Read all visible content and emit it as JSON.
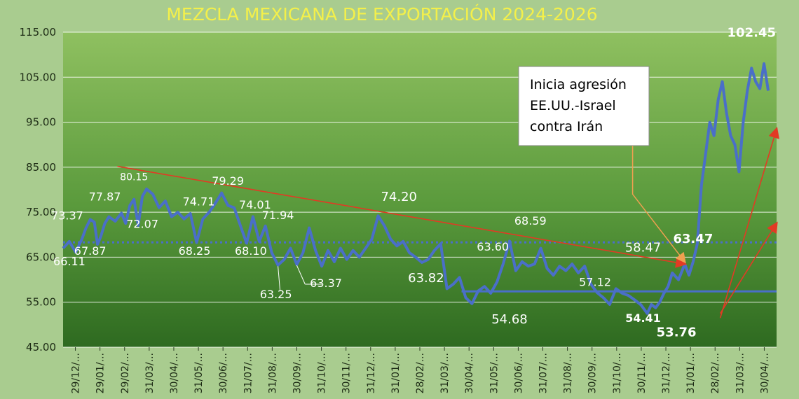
{
  "chart_data": {
    "type": "line",
    "title": "MEZCLA MEXICANA DE EXPORTACIÓN 2024-2026",
    "ylim": [
      45,
      115
    ],
    "yticks": [
      "45.00",
      "55.00",
      "65.00",
      "75.00",
      "85.00",
      "95.00",
      "105.00",
      "115.00"
    ],
    "xticks": [
      "29/12/...",
      "29/01/...",
      "29/02/...",
      "31/03/...",
      "30/04/...",
      "31/05/...",
      "30/06/...",
      "31/07/...",
      "31/08/...",
      "30/09/...",
      "31/10/...",
      "30/11/...",
      "31/12/...",
      "31/01/...",
      "28/02/...",
      "31/03/...",
      "30/04/...",
      "31/05/...",
      "30/06/...",
      "31/07/...",
      "31/08/...",
      "30/09/...",
      "31/10/...",
      "30/11/...",
      "31/12/...",
      "31/01/...",
      "28/02/...",
      "31/03/...",
      "30/04/..."
    ],
    "legend": "none",
    "grid": "horizontal",
    "series": [
      {
        "color": "#4a6fc8",
        "points": [
          [
            0,
            67.0
          ],
          [
            0.3,
            68.5
          ],
          [
            0.6,
            66.11
          ],
          [
            0.9,
            69.0
          ],
          [
            1.1,
            71.5
          ],
          [
            1.3,
            73.37
          ],
          [
            1.5,
            72.8
          ],
          [
            1.65,
            67.87
          ],
          [
            1.8,
            69.5
          ],
          [
            2.0,
            72.5
          ],
          [
            2.2,
            74.0
          ],
          [
            2.5,
            73.0
          ],
          [
            2.8,
            74.8
          ],
          [
            3.0,
            72.5
          ],
          [
            3.2,
            76.5
          ],
          [
            3.4,
            77.87
          ],
          [
            3.6,
            72.07
          ],
          [
            3.8,
            78.5
          ],
          [
            4.0,
            80.15
          ],
          [
            4.3,
            79.0
          ],
          [
            4.6,
            76.0
          ],
          [
            4.9,
            77.5
          ],
          [
            5.2,
            74.0
          ],
          [
            5.5,
            75.0
          ],
          [
            5.8,
            73.5
          ],
          [
            6.1,
            74.71
          ],
          [
            6.4,
            68.25
          ],
          [
            6.7,
            73.5
          ],
          [
            7.0,
            75.0
          ],
          [
            7.3,
            77.0
          ],
          [
            7.6,
            79.29
          ],
          [
            7.9,
            76.5
          ],
          [
            8.2,
            76.0
          ],
          [
            8.5,
            72.0
          ],
          [
            8.8,
            68.1
          ],
          [
            9.1,
            74.01
          ],
          [
            9.4,
            68.5
          ],
          [
            9.7,
            71.94
          ],
          [
            10.0,
            66.0
          ],
          [
            10.3,
            63.25
          ],
          [
            10.6,
            64.5
          ],
          [
            10.9,
            67.0
          ],
          [
            11.2,
            63.37
          ],
          [
            11.5,
            66.0
          ],
          [
            11.8,
            71.5
          ],
          [
            12.1,
            66.5
          ],
          [
            12.4,
            63.0
          ],
          [
            12.7,
            66.5
          ],
          [
            13.0,
            64.0
          ],
          [
            13.3,
            67.0
          ],
          [
            13.6,
            64.5
          ],
          [
            13.9,
            66.5
          ],
          [
            14.2,
            65.0
          ],
          [
            14.5,
            67.0
          ],
          [
            14.8,
            69.0
          ],
          [
            15.1,
            74.2
          ],
          [
            15.4,
            72.0
          ],
          [
            15.7,
            69.0
          ],
          [
            16.0,
            67.5
          ],
          [
            16.3,
            68.5
          ],
          [
            16.6,
            66.0
          ],
          [
            16.9,
            65.0
          ],
          [
            17.2,
            63.82
          ],
          [
            17.5,
            64.5
          ],
          [
            17.8,
            66.5
          ],
          [
            18.1,
            68.0
          ],
          [
            18.4,
            58.0
          ],
          [
            18.7,
            59.0
          ],
          [
            19.0,
            60.5
          ],
          [
            19.3,
            56.0
          ],
          [
            19.6,
            54.68
          ],
          [
            19.9,
            57.5
          ],
          [
            20.2,
            58.5
          ],
          [
            20.5,
            57.0
          ],
          [
            20.8,
            59.5
          ],
          [
            21.1,
            63.6
          ],
          [
            21.4,
            68.59
          ],
          [
            21.7,
            62.0
          ],
          [
            22.0,
            64.0
          ],
          [
            22.3,
            63.0
          ],
          [
            22.6,
            63.5
          ],
          [
            22.9,
            67.0
          ],
          [
            23.2,
            62.5
          ],
          [
            23.5,
            61.0
          ],
          [
            23.8,
            63.0
          ],
          [
            24.1,
            62.0
          ],
          [
            24.4,
            63.5
          ],
          [
            24.7,
            61.5
          ],
          [
            25.0,
            63.0
          ],
          [
            25.3,
            59.0
          ],
          [
            25.6,
            57.12
          ],
          [
            25.9,
            56.0
          ],
          [
            26.2,
            54.5
          ],
          [
            26.5,
            58.0
          ],
          [
            26.8,
            57.0
          ],
          [
            27.1,
            56.5
          ],
          [
            27.4,
            55.5
          ],
          [
            27.7,
            54.41
          ],
          [
            28.0,
            52.5
          ],
          [
            28.2,
            54.5
          ],
          [
            28.4,
            53.76
          ],
          [
            28.6,
            55.0
          ],
          [
            28.8,
            57.0
          ],
          [
            29.0,
            58.5
          ],
          [
            29.2,
            61.5
          ],
          [
            29.5,
            60.0
          ],
          [
            29.8,
            63.47
          ],
          [
            30.0,
            61.0
          ],
          [
            30.2,
            64.0
          ],
          [
            30.4,
            68.0
          ],
          [
            30.6,
            81.0
          ],
          [
            30.8,
            88.0
          ],
          [
            31.0,
            95.0
          ],
          [
            31.2,
            92.0
          ],
          [
            31.4,
            100.0
          ],
          [
            31.6,
            104.0
          ],
          [
            31.8,
            97.0
          ],
          [
            32.0,
            92.0
          ],
          [
            32.2,
            90.0
          ],
          [
            32.4,
            84.0
          ],
          [
            32.6,
            95.0
          ],
          [
            32.8,
            102.0
          ],
          [
            33.0,
            107.0
          ],
          [
            33.2,
            104.0
          ],
          [
            33.4,
            102.45
          ],
          [
            33.6,
            108.0
          ],
          [
            33.8,
            102.0
          ]
        ]
      }
    ],
    "reference_lines": [
      {
        "value": 68.3,
        "style": "dotted",
        "color": "#4a6fc8"
      },
      {
        "value": 57.4,
        "from_x": 19.1,
        "style": "solid",
        "color": "#4a6fc8"
      }
    ],
    "trend_lines": [
      {
        "from": [
          2.6,
          85.2
        ],
        "to": [
          29.8,
          63.5
        ],
        "color": "#e23a24"
      },
      {
        "from": [
          31.5,
          51.5
        ],
        "to": [
          34.2,
          93.5
        ],
        "color": "#e23a24"
      },
      {
        "from": [
          31.5,
          52.5
        ],
        "to": [
          34.2,
          72.5
        ],
        "color": "#e23a24"
      }
    ],
    "callout_leader": {
      "from": [
        27.3,
        90.0
      ],
      "via": [
        27.3,
        79.0
      ],
      "to": [
        29.8,
        64.0
      ],
      "color": "#f0a050"
    },
    "data_labels": [
      {
        "text": "73.37",
        "x": 0.2,
        "y": 73.37,
        "color": "#ffffff",
        "size": 16,
        "bold": false
      },
      {
        "text": "66.11",
        "x": 0.3,
        "y": 63.2,
        "color": "#ffffff",
        "size": 16,
        "bold": false
      },
      {
        "text": "67.87",
        "x": 1.3,
        "y": 65.5,
        "color": "#ffffff",
        "size": 16,
        "bold": false
      },
      {
        "text": "77.87",
        "x": 2.0,
        "y": 77.6,
        "color": "#ffffff",
        "size": 16,
        "bold": false
      },
      {
        "text": "80.15",
        "x": 3.4,
        "y": 82.1,
        "color": "#ffffff",
        "size": 14,
        "bold": false
      },
      {
        "text": "72.07",
        "x": 3.8,
        "y": 71.5,
        "color": "#ffffff",
        "size": 16,
        "bold": false
      },
      {
        "text": "74.71",
        "x": 6.5,
        "y": 76.5,
        "color": "#ffffff",
        "size": 16,
        "bold": false
      },
      {
        "text": "68.25",
        "x": 6.3,
        "y": 65.5,
        "color": "#ffffff",
        "size": 16,
        "bold": false
      },
      {
        "text": "79.29",
        "x": 7.9,
        "y": 81.1,
        "color": "#ffffff",
        "size": 16,
        "bold": false
      },
      {
        "text": "74.01",
        "x": 9.2,
        "y": 75.8,
        "color": "#ffffff",
        "size": 16,
        "bold": false
      },
      {
        "text": "68.10",
        "x": 9.0,
        "y": 65.5,
        "color": "#ffffff",
        "size": 16,
        "bold": false
      },
      {
        "text": "71.94",
        "x": 10.3,
        "y": 73.5,
        "color": "#ffffff",
        "size": 16,
        "bold": false
      },
      {
        "text": "63.25",
        "x": 10.2,
        "y": 55.9,
        "color": "#ffffff",
        "size": 16,
        "bold": false
      },
      {
        "text": "63.37",
        "x": 12.6,
        "y": 58.4,
        "color": "#ffffff",
        "size": 16,
        "bold": false
      },
      {
        "text": "74.20",
        "x": 16.1,
        "y": 77.5,
        "color": "#ffffff",
        "size": 18,
        "bold": false
      },
      {
        "text": "63.82",
        "x": 17.4,
        "y": 59.5,
        "color": "#ffffff",
        "size": 18,
        "bold": false
      },
      {
        "text": "63.60",
        "x": 20.6,
        "y": 66.5,
        "color": "#ffffff",
        "size": 16,
        "bold": false
      },
      {
        "text": "68.59",
        "x": 22.4,
        "y": 72.2,
        "color": "#ffffff",
        "size": 16,
        "bold": false
      },
      {
        "text": "54.68",
        "x": 21.4,
        "y": 50.3,
        "color": "#ffffff",
        "size": 18,
        "bold": false
      },
      {
        "text": "57.12",
        "x": 25.5,
        "y": 58.6,
        "color": "#ffffff",
        "size": 16,
        "bold": false
      },
      {
        "text": "58.47",
        "x": 27.8,
        "y": 66.2,
        "color": "#ffffff",
        "size": 18,
        "bold": false
      },
      {
        "text": "54.41",
        "x": 27.8,
        "y": 50.6,
        "color": "#ffffff",
        "size": 16,
        "bold": true
      },
      {
        "text": "63.47",
        "x": 30.2,
        "y": 68.2,
        "color": "#f4f04a",
        "size": 18,
        "bold": true
      },
      {
        "text": "53.76",
        "x": 29.4,
        "y": 47.4,
        "color": "#ffffff",
        "size": 18,
        "bold": true
      },
      {
        "text": "102.45",
        "x": 33.0,
        "y": 114.0,
        "color": "#f4f04a",
        "size": 18,
        "bold": true
      }
    ],
    "callout_box": {
      "lines": [
        "Inicia agresión",
        "EE.UU.-Israel",
        "contra Irán"
      ]
    }
  }
}
